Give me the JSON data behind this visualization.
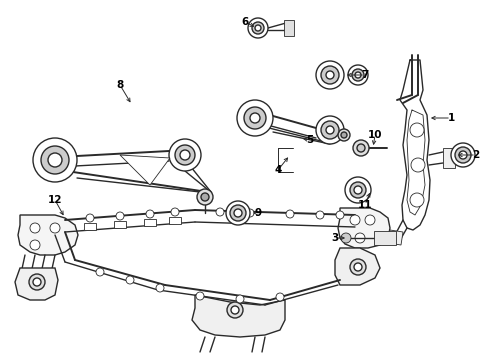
{
  "background_color": "#ffffff",
  "line_color": "#2a2a2a",
  "label_color": "#000000",
  "figsize": [
    4.89,
    3.6
  ],
  "dpi": 100,
  "lw": 1.0,
  "lw_thin": 0.6,
  "lw_thick": 1.4
}
